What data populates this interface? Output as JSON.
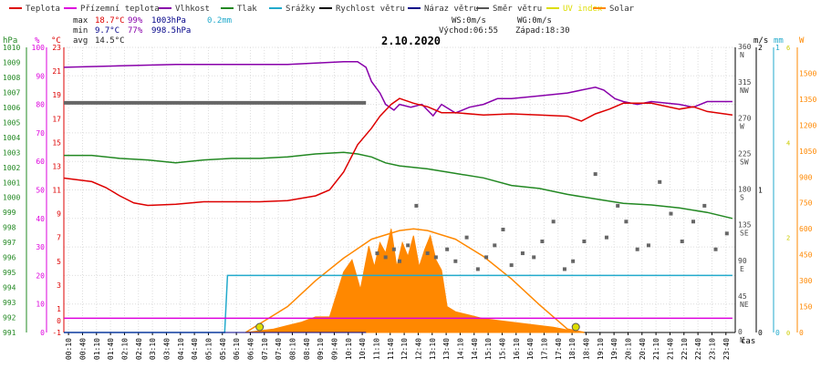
{
  "legend": [
    {
      "label": "Teplota",
      "color": "#dd0000"
    },
    {
      "label": "Přízemní teplota",
      "color": "#dd00dd"
    },
    {
      "label": "Vlhkost",
      "color": "#8800aa"
    },
    {
      "label": "Tlak",
      "color": "#228822"
    },
    {
      "label": "Srážky",
      "color": "#22aacc"
    },
    {
      "label": "Rychlost větru",
      "color": "#000000"
    },
    {
      "label": "Náraz větru",
      "color": "#000088"
    },
    {
      "label": "Směr větru",
      "color": "#555555"
    },
    {
      "label": "UV index",
      "color": "#dddd00"
    },
    {
      "label": "Solar",
      "color": "#ff8800"
    }
  ],
  "stats": {
    "max_label": "max",
    "max_temp": "18.7°C",
    "max_hum": "99%",
    "max_press": "1003hPa",
    "max_rain": "0.2mm",
    "min_label": "min",
    "min_temp": "9.7°C",
    "min_hum": "77%",
    "min_press": "998.5hPa",
    "avg_label": "avg",
    "avg_temp": "14.5°C"
  },
  "wind_info": {
    "ws": "WS:0m/s",
    "wg": "WG:0m/s",
    "sunrise": "Východ:06:55",
    "sunset": "Západ:18:30"
  },
  "date": "2.10.2020",
  "axis_units": {
    "press": "hPa",
    "hum": "%",
    "temp": "°C",
    "wind": "m/s",
    "rain": "mm",
    "solar": "W",
    "time": "čas"
  },
  "chart_data": {
    "type": "line",
    "title": "2.10.2020",
    "x_ticks": [
      "00:10",
      "00:40",
      "01:10",
      "01:40",
      "02:10",
      "02:40",
      "03:10",
      "03:40",
      "04:10",
      "04:40",
      "05:10",
      "05:40",
      "06:10",
      "06:40",
      "07:10",
      "07:40",
      "08:10",
      "08:40",
      "09:10",
      "09:40",
      "10:10",
      "10:40",
      "11:10",
      "11:40",
      "12:10",
      "12:40",
      "13:10",
      "13:40",
      "14:10",
      "14:40",
      "15:10",
      "15:40",
      "16:10",
      "16:40",
      "17:10",
      "17:40",
      "18:10",
      "18:40",
      "19:10",
      "19:40",
      "20:10",
      "20:40",
      "21:10",
      "21:40",
      "22:10",
      "22:40",
      "23:10",
      "23:40"
    ],
    "axes": {
      "pressure_hpa": {
        "range": [
          991,
          1010
        ],
        "ticks": [
          991,
          992,
          993,
          994,
          995,
          996,
          997,
          998,
          999,
          1000,
          1001,
          1002,
          1003,
          1004,
          1005,
          1006,
          1007,
          1008,
          1009,
          1010
        ]
      },
      "humidity_pct": {
        "range": [
          0,
          100
        ],
        "ticks": [
          0,
          10,
          20,
          30,
          40,
          50,
          60,
          70,
          80,
          90,
          100
        ]
      },
      "temperature_c": {
        "range": [
          -1,
          23
        ],
        "ticks": [
          -1,
          0,
          1,
          3,
          5,
          7,
          9,
          11,
          13,
          15,
          17,
          19,
          21,
          23
        ]
      },
      "wind_dir": {
        "ticks": [
          {
            "v": 0,
            "l": "0",
            "d": "N"
          },
          {
            "v": 45,
            "l": "45",
            "d": "NE"
          },
          {
            "v": 90,
            "l": "90",
            "d": "E"
          },
          {
            "v": 135,
            "l": "135",
            "d": "SE"
          },
          {
            "v": 180,
            "l": "180",
            "d": "S"
          },
          {
            "v": 225,
            "l": "225",
            "d": "SW"
          },
          {
            "v": 270,
            "l": "270",
            "d": "W"
          },
          {
            "v": 315,
            "l": "315",
            "d": "NW"
          },
          {
            "v": 360,
            "l": "360",
            "d": "N"
          }
        ]
      },
      "wind_ms": {
        "range": [
          0,
          2
        ],
        "ticks": [
          0,
          1,
          2
        ]
      },
      "rain_mm": {
        "range": [
          0,
          1
        ],
        "ticks": [
          0,
          1
        ]
      },
      "uv": {
        "range": [
          0,
          6
        ],
        "ticks": [
          0,
          2,
          4,
          6
        ]
      },
      "solar_w": {
        "range": [
          0,
          1650
        ],
        "ticks": [
          0,
          150,
          300,
          450,
          600,
          750,
          900,
          1050,
          1200,
          1350,
          1500
        ]
      }
    },
    "series": [
      {
        "name": "Teplota",
        "axis": "temperature_c",
        "x": [
          0,
          1,
          1.5,
          2,
          2.5,
          3,
          4,
          5,
          6,
          7,
          8,
          9,
          9.5,
          10,
          10.5,
          11,
          11.3,
          11.7,
          12,
          12.5,
          13,
          13.5,
          14,
          15,
          16,
          17,
          18,
          18.5,
          19,
          19.5,
          20,
          21,
          22,
          22.5,
          23,
          23.9
        ],
        "y": [
          12,
          11.7,
          11.2,
          10.5,
          9.9,
          9.7,
          9.8,
          10,
          10,
          10,
          10.1,
          10.5,
          11,
          12.5,
          14.8,
          16.2,
          17.2,
          18.2,
          18.7,
          18.3,
          18,
          17.5,
          17.5,
          17.3,
          17.4,
          17.3,
          17.2,
          16.8,
          17.4,
          17.8,
          18.3,
          18.3,
          17.8,
          18.0,
          17.6,
          17.3
        ]
      },
      {
        "name": "Přízemní teplota",
        "axis": "temperature_c",
        "x": [
          0,
          23.9
        ],
        "y": [
          0.2,
          0.2
        ]
      },
      {
        "name": "Vlhkost",
        "axis": "humidity_pct",
        "x": [
          0,
          2,
          4,
          6,
          8,
          10,
          10.5,
          10.8,
          11,
          11.3,
          11.5,
          11.8,
          12,
          12.4,
          12.8,
          13.2,
          13.5,
          14,
          14.5,
          15,
          15.5,
          16,
          17,
          18,
          18.5,
          19,
          19.3,
          19.7,
          20,
          20.5,
          21,
          22,
          22.5,
          23,
          23.9
        ],
        "y": [
          93,
          93.5,
          94,
          94,
          94,
          95,
          95,
          93,
          88,
          84,
          80,
          78,
          80,
          79,
          80,
          76,
          80,
          77,
          79,
          80,
          82,
          82,
          83,
          84,
          85,
          86,
          85,
          82,
          81,
          80,
          81,
          80,
          79,
          81,
          81
        ]
      },
      {
        "name": "Tlak",
        "axis": "pressure_hpa",
        "x": [
          0,
          1,
          2,
          3,
          4,
          5,
          6,
          7,
          8,
          9,
          10,
          10.5,
          11,
          11.5,
          12,
          13,
          14,
          15,
          16,
          17,
          18,
          19,
          20,
          21,
          22,
          23,
          23.9
        ],
        "y": [
          1002.8,
          1002.8,
          1002.6,
          1002.5,
          1002.3,
          1002.5,
          1002.6,
          1002.6,
          1002.7,
          1002.9,
          1003.0,
          1002.9,
          1002.7,
          1002.3,
          1002.1,
          1001.9,
          1001.6,
          1001.3,
          1000.8,
          1000.6,
          1000.2,
          999.9,
          999.6,
          999.5,
          999.3,
          999.0,
          998.6
        ]
      },
      {
        "name": "Srážky",
        "axis": "rain_mm",
        "x": [
          0,
          5.75,
          5.85,
          23.9
        ],
        "y": [
          0,
          0,
          0.2,
          0.2
        ]
      },
      {
        "name": "Rychlost větru",
        "axis": "wind_ms",
        "x": [
          0,
          10.8
        ],
        "y": [
          0,
          0
        ]
      },
      {
        "name": "Náraz větru",
        "axis": "wind_ms",
        "x": [
          0,
          10.8
        ],
        "y": [
          0,
          0
        ]
      },
      {
        "name": "Solar",
        "axis": "solar_w",
        "x": [
          6.5,
          8,
          9,
          10,
          11,
          12,
          12.5,
          13,
          14,
          15,
          16,
          17,
          18,
          18.6
        ],
        "y": [
          0,
          150,
          300,
          430,
          540,
          590,
          600,
          590,
          540,
          440,
          310,
          160,
          20,
          0
        ]
      },
      {
        "name": "Solar measured",
        "axis": "solar_w",
        "x": [
          6.5,
          7.5,
          8,
          8.5,
          9,
          9.5,
          10,
          10.3,
          10.6,
          10.9,
          11.1,
          11.3,
          11.5,
          11.7,
          11.9,
          12.1,
          12.3,
          12.5,
          12.7,
          12.9,
          13.1,
          13.3,
          13.5,
          13.7,
          14,
          14.5,
          15,
          15.5,
          16,
          16.5,
          17,
          17.5,
          18,
          18.6
        ],
        "y": [
          0,
          20,
          40,
          60,
          90,
          90,
          350,
          420,
          250,
          500,
          380,
          520,
          460,
          600,
          380,
          520,
          440,
          560,
          380,
          480,
          560,
          420,
          360,
          150,
          120,
          100,
          80,
          70,
          60,
          50,
          40,
          30,
          15,
          0
        ]
      },
      {
        "name": "Směr větru",
        "axis": "wind_dir",
        "type": "scatter",
        "x": [
          0,
          1,
          2,
          3,
          4,
          5,
          6,
          7,
          8,
          9,
          10,
          10.8,
          11.2,
          11.5,
          11.8,
          12,
          12.3,
          12.6,
          13,
          13.3,
          13.7,
          14,
          14.4,
          14.8,
          15.1,
          15.4,
          15.7,
          16,
          16.4,
          16.8,
          17.1,
          17.5,
          17.9,
          18.2,
          18.6,
          19,
          19.4,
          19.8,
          20.1,
          20.5,
          20.9,
          21.3,
          21.7,
          22.1,
          22.5,
          22.9,
          23.3,
          23.7
        ],
        "y": [
          290,
          290,
          290,
          290,
          290,
          290,
          290,
          290,
          290,
          290,
          290,
          290,
          100,
          95,
          105,
          90,
          110,
          160,
          100,
          95,
          105,
          90,
          120,
          80,
          95,
          110,
          130,
          85,
          100,
          95,
          115,
          140,
          80,
          90,
          115,
          200,
          120,
          160,
          140,
          105,
          110,
          190,
          150,
          115,
          140,
          160,
          105,
          125
        ]
      },
      {
        "name": "UV index",
        "axis": "uv",
        "type": "scatter",
        "x": [
          7.0,
          18.3
        ],
        "y": [
          0,
          0
        ]
      }
    ]
  }
}
